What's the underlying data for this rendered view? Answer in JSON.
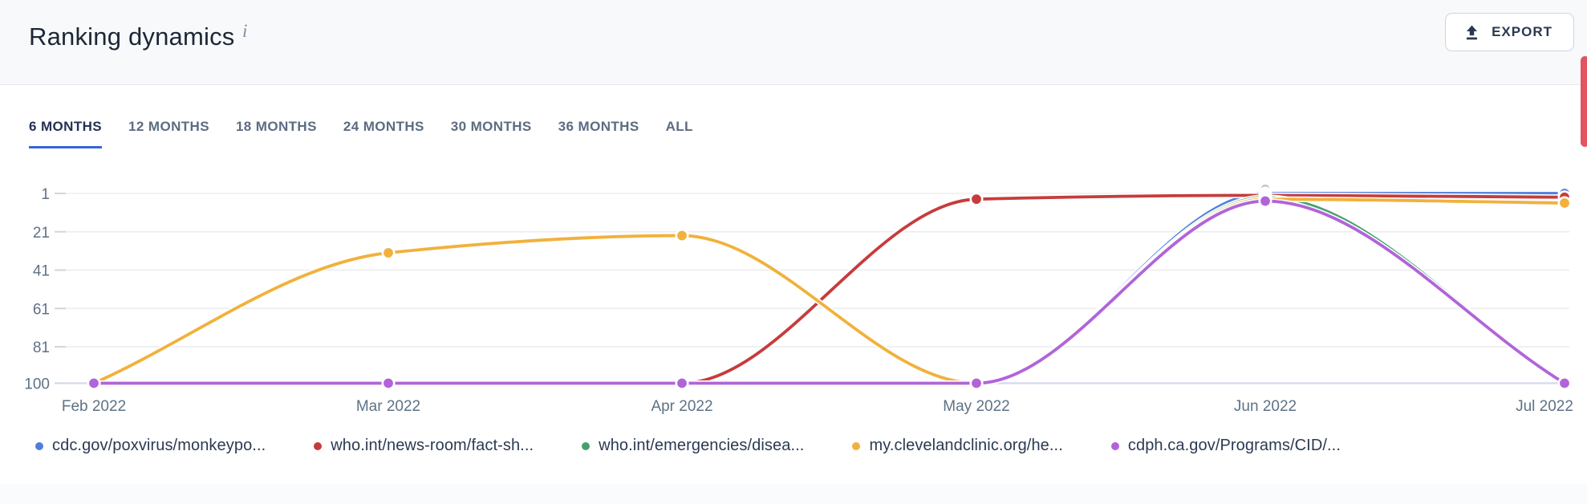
{
  "header": {
    "title": "Ranking dynamics",
    "info_glyph": "i",
    "export_label": "EXPORT"
  },
  "icons": {
    "export": "upload-arrow-icon",
    "info": "info-icon"
  },
  "tabs": {
    "items": [
      {
        "label": "6 MONTHS",
        "active": true
      },
      {
        "label": "12 MONTHS",
        "active": false
      },
      {
        "label": "18 MONTHS",
        "active": false
      },
      {
        "label": "24 MONTHS",
        "active": false
      },
      {
        "label": "30 MONTHS",
        "active": false
      },
      {
        "label": "36 MONTHS",
        "active": false
      },
      {
        "label": "ALL",
        "active": false
      }
    ]
  },
  "chart_data": {
    "type": "line",
    "title": "Ranking dynamics",
    "x": [
      "Feb 2022",
      "Mar 2022",
      "Apr 2022",
      "May 2022",
      "Jun 2022",
      "Jul 2022"
    ],
    "y_axis": {
      "ticks": [
        1,
        21,
        41,
        61,
        81,
        100
      ],
      "inverted": true,
      "range": [
        1,
        100
      ],
      "meaning": "search ranking position"
    },
    "grid": true,
    "legend_position": "bottom",
    "series": [
      {
        "name": "cdc.gov/poxvirus/monkeypo...",
        "color": "#4f7fdd",
        "values": [
          100,
          100,
          100,
          100,
          1,
          1
        ]
      },
      {
        "name": "who.int/news-room/fact-sh...",
        "color": "#c63c3c",
        "values": [
          100,
          100,
          100,
          4,
          2,
          3
        ]
      },
      {
        "name": "who.int/emergencies/disea...",
        "color": "#46a06e",
        "values": [
          100,
          100,
          100,
          100,
          3,
          100
        ]
      },
      {
        "name": "my.clevelandclinic.org/he...",
        "color": "#f1b13c",
        "values": [
          100,
          32,
          23,
          100,
          4,
          6
        ]
      },
      {
        "name": "cdph.ca.gov/Programs/CID/...",
        "color": "#b164d9",
        "values": [
          100,
          100,
          100,
          100,
          5,
          100
        ]
      }
    ],
    "overflow_marker": {
      "x_index": 4,
      "color": "#bcc3cf",
      "note": "stacked points indicator at Jun 2022"
    }
  }
}
